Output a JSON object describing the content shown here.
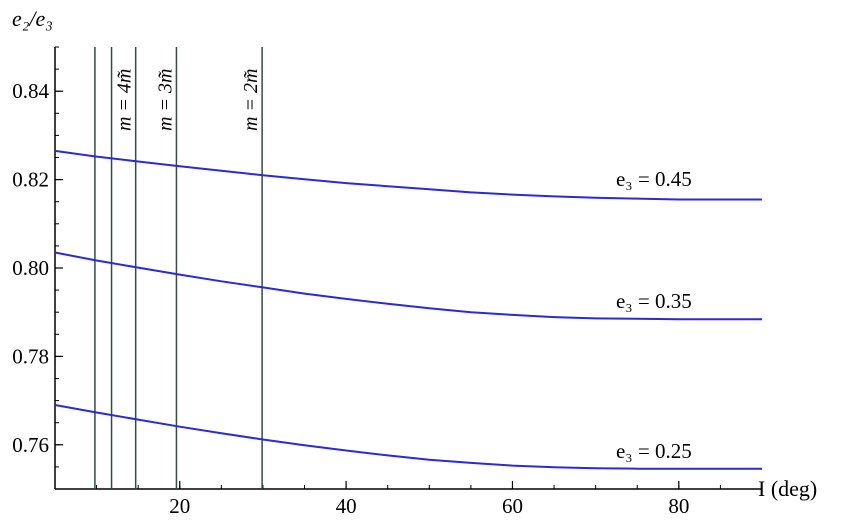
{
  "chart_data": {
    "type": "line",
    "xlabel": "I  (deg)",
    "ylabel": "e₂/e₃",
    "xlim": [
      5,
      90
    ],
    "ylim": [
      0.75,
      0.85
    ],
    "xticks": [
      20,
      40,
      60,
      80
    ],
    "yticks": [
      0.76,
      0.78,
      0.8,
      0.82,
      0.84
    ],
    "xtick_labels": [
      "20",
      "40",
      "60",
      "80"
    ],
    "ytick_labels": [
      "0.76",
      "0.78",
      "0.80",
      "0.82",
      "0.84"
    ],
    "x": [
      5,
      10,
      15,
      20,
      25,
      30,
      35,
      40,
      45,
      50,
      55,
      60,
      65,
      70,
      75,
      80,
      85,
      90
    ],
    "series": [
      {
        "name": "e₃ = 0.45",
        "color": "#2b2bd0",
        "values": [
          0.8265,
          0.8252,
          0.8241,
          0.823,
          0.822,
          0.821,
          0.8201,
          0.8192,
          0.8185,
          0.8178,
          0.8171,
          0.8166,
          0.8162,
          0.8159,
          0.8157,
          0.8155,
          0.8155,
          0.8155
        ]
      },
      {
        "name": "e₃ = 0.35",
        "color": "#2b2bd0",
        "values": [
          0.8035,
          0.8017,
          0.8001,
          0.7985,
          0.797,
          0.7956,
          0.7942,
          0.793,
          0.7919,
          0.7909,
          0.79,
          0.7894,
          0.7889,
          0.7886,
          0.7885,
          0.7884,
          0.7884,
          0.7884
        ]
      },
      {
        "name": "e₃ = 0.25",
        "color": "#2b2bd0",
        "values": [
          0.769,
          0.7673,
          0.7657,
          0.7641,
          0.7626,
          0.7612,
          0.7599,
          0.7587,
          0.7576,
          0.7566,
          0.7559,
          0.7553,
          0.7549,
          0.7547,
          0.7546,
          0.7546,
          0.7546,
          0.7546
        ]
      }
    ],
    "series_label_positions": [
      {
        "x": 77,
        "y": 0.8185
      },
      {
        "x": 77,
        "y": 0.791
      },
      {
        "x": 77,
        "y": 0.757
      }
    ],
    "vertical_lines": [
      {
        "x": 9.8,
        "label": ""
      },
      {
        "x": 11.8,
        "label": ""
      },
      {
        "x": 14.7,
        "label": "m = 4m̃"
      },
      {
        "x": 19.6,
        "label": "m = 3m̃"
      },
      {
        "x": 29.9,
        "label": "m = 2m̃"
      }
    ],
    "grid": false,
    "legend": "inline labels at right end of curves"
  }
}
